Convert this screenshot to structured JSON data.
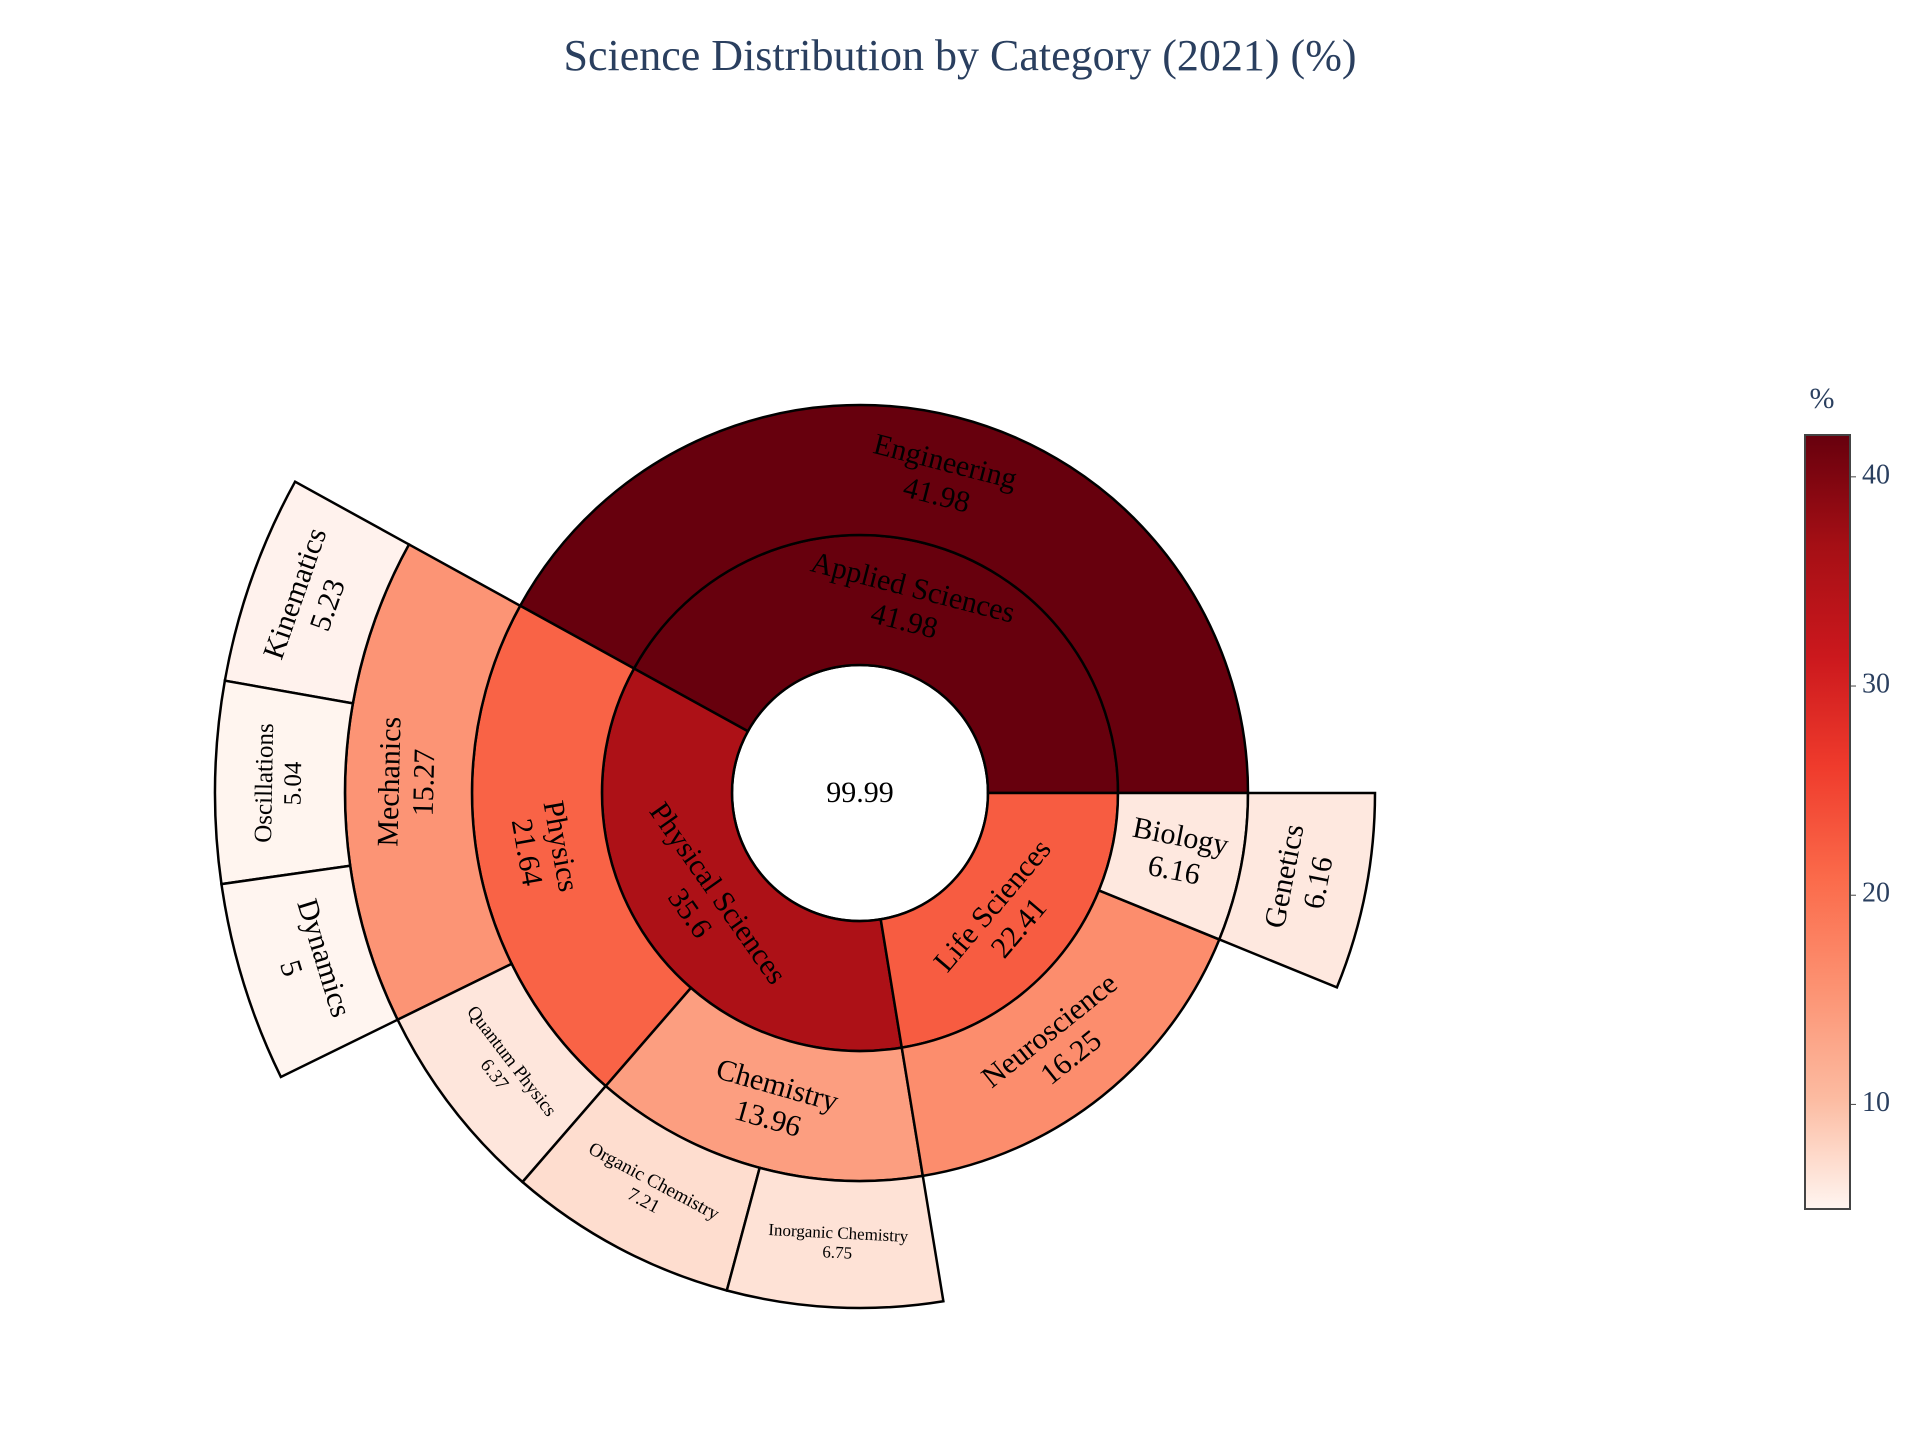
{
  "chart_data": {
    "type": "sunburst",
    "title": "Science Distribution by Category (2021) (%)",
    "center_value": "99.99",
    "rings": [
      {
        "level": 1,
        "segments": [
          {
            "label": "Applied Sciences",
            "value_label": "41.98",
            "value": 41.98
          },
          {
            "label": "Physical Sciences",
            "value_label": "35.6",
            "value": 35.6
          },
          {
            "label": "Life Sciences",
            "value_label": "22.41",
            "value": 22.41
          }
        ]
      },
      {
        "level": 2,
        "segments": [
          {
            "label": "Engineering",
            "value_label": "41.98",
            "value": 41.98,
            "parent": "Applied Sciences"
          },
          {
            "label": "Physics",
            "value_label": "21.64",
            "value": 21.64,
            "parent": "Physical Sciences"
          },
          {
            "label": "Chemistry",
            "value_label": "13.96",
            "value": 13.96,
            "parent": "Physical Sciences"
          },
          {
            "label": "Neuroscience",
            "value_label": "16.25",
            "value": 16.25,
            "parent": "Life Sciences"
          },
          {
            "label": "Biology",
            "value_label": "6.16",
            "value": 6.16,
            "parent": "Life Sciences"
          }
        ]
      },
      {
        "level": 3,
        "segments": [
          {
            "label": "Mechanics",
            "value_label": "15.27",
            "value": 15.27,
            "parent": "Physics"
          },
          {
            "label": "Quantum Physics",
            "value_label": "6.37",
            "value": 6.37,
            "parent": "Physics"
          },
          {
            "label": "Organic Chemistry",
            "value_label": "7.21",
            "value": 7.21,
            "parent": "Chemistry"
          },
          {
            "label": "Inorganic Chemistry",
            "value_label": "6.75",
            "value": 6.75,
            "parent": "Chemistry"
          },
          {
            "label": "Genetics",
            "value_label": "6.16",
            "value": 6.16,
            "parent": "Biology"
          }
        ]
      },
      {
        "level": 4,
        "segments": [
          {
            "label": "Kinematics",
            "value_label": "5.23",
            "value": 5.23,
            "parent": "Mechanics"
          },
          {
            "label": "Oscillations",
            "value_label": "5.04",
            "value": 5.04,
            "parent": "Mechanics"
          },
          {
            "label": "Dynamics",
            "value_label": "5",
            "value": 5,
            "parent": "Mechanics"
          }
        ]
      }
    ],
    "colorbar": {
      "title": "%",
      "ticks": [
        "10",
        "20",
        "30",
        "40"
      ],
      "tick_values": [
        10,
        20,
        30,
        40
      ],
      "range": [
        5,
        42
      ],
      "colorscale": [
        "#fff5f0",
        "#fcbba1",
        "#fc9272",
        "#fb6a4a",
        "#ef3b2c",
        "#cb181d",
        "#a50f15",
        "#67000d"
      ]
    }
  }
}
